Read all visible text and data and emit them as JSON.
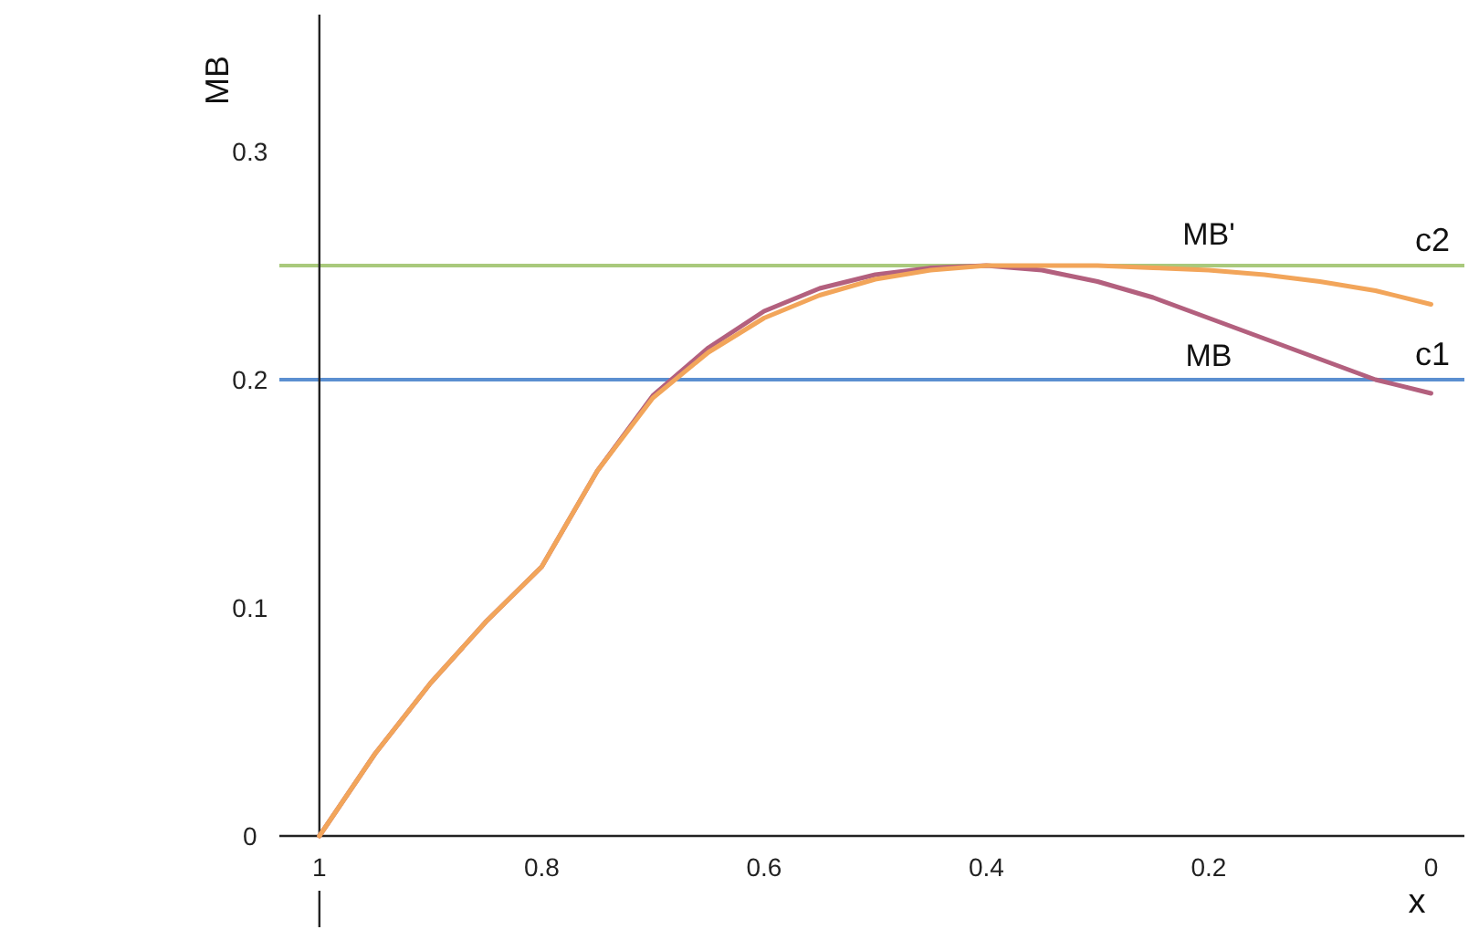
{
  "chart_data": {
    "type": "line",
    "xlabel": "x",
    "ylabel": "MB",
    "xlim": [
      1.036,
      -0.03
    ],
    "ylim": [
      -0.04,
      0.36
    ],
    "xticks": [
      1,
      0.8,
      0.6,
      0.4,
      0.2,
      0
    ],
    "yticks": [
      0,
      0.1,
      0.2,
      0.3
    ],
    "grid": false,
    "marker": "none",
    "line_style": "solid",
    "x": [
      1,
      0.95,
      0.9,
      0.85,
      0.8,
      0.75,
      0.7,
      0.65,
      0.6,
      0.55,
      0.5,
      0.45,
      0.4,
      0.35,
      0.3,
      0.25,
      0.2,
      0.15,
      0.1,
      0.05,
      0
    ],
    "series": [
      {
        "name": "MB",
        "color": "#b3607e",
        "values": [
          0,
          0.036,
          0.067,
          0.094,
          0.118,
          0.16,
          0.193,
          0.214,
          0.23,
          0.24,
          0.246,
          0.249,
          0.25,
          0.248,
          0.243,
          0.236,
          0.227,
          0.218,
          0.209,
          0.2,
          0.194
        ]
      },
      {
        "name": "MB'",
        "color": "#f2a55a",
        "values": [
          0,
          0.036,
          0.067,
          0.094,
          0.118,
          0.16,
          0.192,
          0.212,
          0.227,
          0.237,
          0.244,
          0.248,
          0.25,
          0.25,
          0.25,
          0.249,
          0.248,
          0.246,
          0.243,
          0.239,
          0.233
        ]
      }
    ],
    "ref_lines": [
      {
        "axis": "y",
        "value": 0.2,
        "label": "c1",
        "color": "#5b8fd0"
      },
      {
        "axis": "y",
        "value": 0.25,
        "label": "c2",
        "color": "#a9c97c"
      }
    ]
  }
}
